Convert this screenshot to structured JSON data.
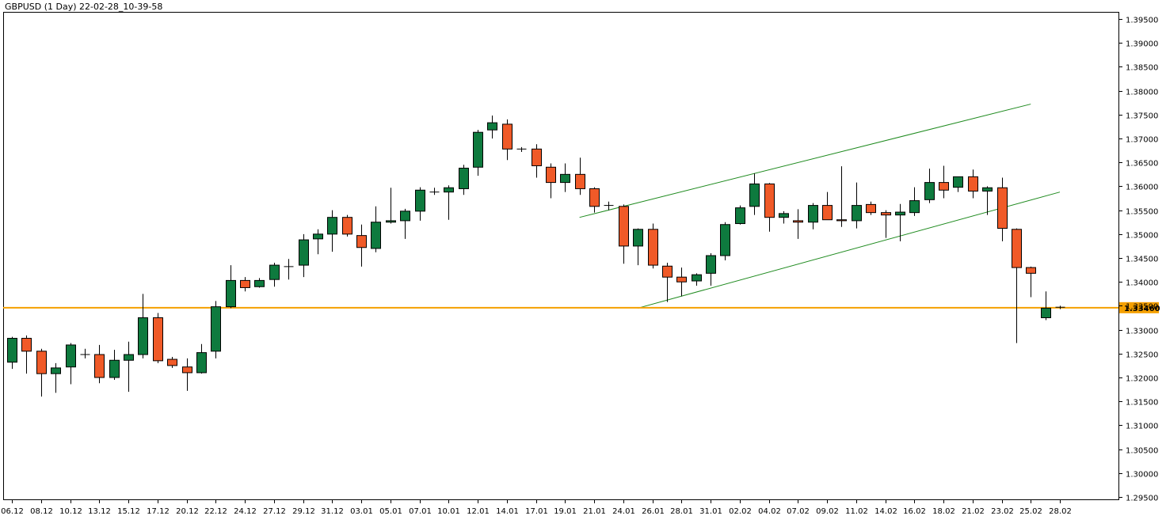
{
  "chart_data": {
    "type": "candlestick",
    "title": "GBPUSD (1 Day) 22-02-28_10-39-58",
    "colors": {
      "background": "#ffffff",
      "bull": "#0e7a3e",
      "bear": "#f05a28",
      "wick": "#000000",
      "trend_line": "#1e8a1e",
      "horizontal_line": "#f5a000",
      "price_label_bg": "#f5a000"
    },
    "y_axis": {
      "position": "right",
      "range": [
        1.2945,
        1.3965
      ],
      "ticks": [
        "1.39500",
        "1.39000",
        "1.38500",
        "1.38000",
        "1.37500",
        "1.37000",
        "1.36500",
        "1.36000",
        "1.35500",
        "1.35000",
        "1.34500",
        "1.34000",
        "1.33500",
        "1.33000",
        "1.32500",
        "1.32000",
        "1.31500",
        "1.31000",
        "1.30500",
        "1.30000",
        "1.29500"
      ]
    },
    "x_axis": {
      "ticks": [
        "06.12",
        "08.12",
        "10.12",
        "13.12",
        "15.12",
        "17.12",
        "20.12",
        "22.12",
        "24.12",
        "27.12",
        "29.12",
        "31.12",
        "03.01",
        "05.01",
        "07.01",
        "10.01",
        "12.01",
        "14.01",
        "17.01",
        "19.01",
        "21.01",
        "24.01",
        "26.01",
        "28.01",
        "31.01",
        "02.02",
        "04.02",
        "07.02",
        "09.02",
        "11.02",
        "14.02",
        "16.02",
        "18.02",
        "21.02",
        "23.02",
        "25.02",
        "28.02"
      ]
    },
    "horizontal_line": {
      "price": 1.3346,
      "label": "1.33460"
    },
    "trend_lines": [
      {
        "from": [
          "20.01",
          1.3535
        ],
        "to": [
          "25.02",
          1.3772
        ]
      },
      {
        "from": [
          "25.01",
          1.3345
        ],
        "to": [
          "28.02",
          1.3588
        ]
      }
    ],
    "candles": [
      {
        "d": "06.12",
        "o": 1.3232,
        "h": 1.3285,
        "l": 1.3218,
        "c": 1.3282
      },
      {
        "d": "07.12",
        "o": 1.3282,
        "h": 1.3288,
        "l": 1.3208,
        "c": 1.3255
      },
      {
        "d": "08.12",
        "o": 1.3255,
        "h": 1.326,
        "l": 1.316,
        "c": 1.3208
      },
      {
        "d": "09.12",
        "o": 1.3208,
        "h": 1.323,
        "l": 1.3168,
        "c": 1.322
      },
      {
        "d": "10.12",
        "o": 1.3222,
        "h": 1.3272,
        "l": 1.3186,
        "c": 1.3268
      },
      {
        "d": "11.12",
        "o": 1.3248,
        "h": 1.326,
        "l": 1.324,
        "c": 1.3248
      },
      {
        "d": "13.12",
        "o": 1.3248,
        "h": 1.3268,
        "l": 1.3188,
        "c": 1.32
      },
      {
        "d": "14.12",
        "o": 1.32,
        "h": 1.3258,
        "l": 1.3195,
        "c": 1.3236
      },
      {
        "d": "15.12",
        "o": 1.3236,
        "h": 1.3275,
        "l": 1.317,
        "c": 1.3248
      },
      {
        "d": "16.12",
        "o": 1.3248,
        "h": 1.3375,
        "l": 1.324,
        "c": 1.3325
      },
      {
        "d": "17.12",
        "o": 1.3325,
        "h": 1.3335,
        "l": 1.323,
        "c": 1.3235
      },
      {
        "d": "19.12",
        "o": 1.3238,
        "h": 1.3243,
        "l": 1.322,
        "c": 1.3225
      },
      {
        "d": "20.12",
        "o": 1.3222,
        "h": 1.324,
        "l": 1.3172,
        "c": 1.321
      },
      {
        "d": "21.12",
        "o": 1.321,
        "h": 1.327,
        "l": 1.3208,
        "c": 1.3252
      },
      {
        "d": "22.12",
        "o": 1.3255,
        "h": 1.336,
        "l": 1.324,
        "c": 1.3348
      },
      {
        "d": "23.12",
        "o": 1.3348,
        "h": 1.3435,
        "l": 1.3345,
        "c": 1.3403
      },
      {
        "d": "24.12",
        "o": 1.3403,
        "h": 1.341,
        "l": 1.338,
        "c": 1.3388
      },
      {
        "d": "26.12",
        "o": 1.339,
        "h": 1.3408,
        "l": 1.3388,
        "c": 1.3403
      },
      {
        "d": "27.12",
        "o": 1.3405,
        "h": 1.344,
        "l": 1.339,
        "c": 1.3435
      },
      {
        "d": "28.12",
        "o": 1.3432,
        "h": 1.3448,
        "l": 1.3405,
        "c": 1.3432
      },
      {
        "d": "29.12",
        "o": 1.3435,
        "h": 1.35,
        "l": 1.341,
        "c": 1.3488
      },
      {
        "d": "30.12",
        "o": 1.349,
        "h": 1.351,
        "l": 1.3458,
        "c": 1.35
      },
      {
        "d": "31.12",
        "o": 1.35,
        "h": 1.355,
        "l": 1.3463,
        "c": 1.3535
      },
      {
        "d": "02.01",
        "o": 1.3535,
        "h": 1.354,
        "l": 1.3495,
        "c": 1.35
      },
      {
        "d": "03.01",
        "o": 1.3497,
        "h": 1.352,
        "l": 1.3432,
        "c": 1.3472
      },
      {
        "d": "04.01",
        "o": 1.347,
        "h": 1.3558,
        "l": 1.3462,
        "c": 1.3525
      },
      {
        "d": "05.01",
        "o": 1.3525,
        "h": 1.3597,
        "l": 1.3522,
        "c": 1.3528
      },
      {
        "d": "06.01",
        "o": 1.3528,
        "h": 1.3553,
        "l": 1.349,
        "c": 1.3548
      },
      {
        "d": "07.01",
        "o": 1.3548,
        "h": 1.3598,
        "l": 1.3528,
        "c": 1.3592
      },
      {
        "d": "09.01",
        "o": 1.3588,
        "h": 1.3597,
        "l": 1.3582,
        "c": 1.3588
      },
      {
        "d": "10.01",
        "o": 1.3588,
        "h": 1.3602,
        "l": 1.353,
        "c": 1.3597
      },
      {
        "d": "11.01",
        "o": 1.3595,
        "h": 1.3645,
        "l": 1.3582,
        "c": 1.3638
      },
      {
        "d": "12.01",
        "o": 1.364,
        "h": 1.3718,
        "l": 1.3622,
        "c": 1.3713
      },
      {
        "d": "13.01",
        "o": 1.3718,
        "h": 1.3748,
        "l": 1.37,
        "c": 1.3733
      },
      {
        "d": "14.01",
        "o": 1.373,
        "h": 1.374,
        "l": 1.3655,
        "c": 1.3678
      },
      {
        "d": "16.01",
        "o": 1.3678,
        "h": 1.3682,
        "l": 1.3672,
        "c": 1.3678
      },
      {
        "d": "17.01",
        "o": 1.3678,
        "h": 1.3688,
        "l": 1.3618,
        "c": 1.3643
      },
      {
        "d": "18.01",
        "o": 1.364,
        "h": 1.3648,
        "l": 1.3575,
        "c": 1.3608
      },
      {
        "d": "19.01",
        "o": 1.3608,
        "h": 1.3648,
        "l": 1.3588,
        "c": 1.3625
      },
      {
        "d": "20.01",
        "o": 1.3625,
        "h": 1.366,
        "l": 1.3582,
        "c": 1.3595
      },
      {
        "d": "21.01",
        "o": 1.3595,
        "h": 1.3598,
        "l": 1.3545,
        "c": 1.3558
      },
      {
        "d": "23.01",
        "o": 1.356,
        "h": 1.3568,
        "l": 1.355,
        "c": 1.356
      },
      {
        "d": "24.01",
        "o": 1.3558,
        "h": 1.3562,
        "l": 1.3438,
        "c": 1.3475
      },
      {
        "d": "25.01",
        "o": 1.3475,
        "h": 1.3512,
        "l": 1.3435,
        "c": 1.351
      },
      {
        "d": "26.01",
        "o": 1.351,
        "h": 1.3522,
        "l": 1.3428,
        "c": 1.3435
      },
      {
        "d": "27.01",
        "o": 1.3433,
        "h": 1.344,
        "l": 1.3358,
        "c": 1.341
      },
      {
        "d": "28.01",
        "o": 1.341,
        "h": 1.343,
        "l": 1.337,
        "c": 1.34
      },
      {
        "d": "30.01",
        "o": 1.3402,
        "h": 1.3418,
        "l": 1.3392,
        "c": 1.3415
      },
      {
        "d": "31.01",
        "o": 1.3418,
        "h": 1.346,
        "l": 1.3392,
        "c": 1.3455
      },
      {
        "d": "01.02",
        "o": 1.3455,
        "h": 1.3525,
        "l": 1.3445,
        "c": 1.352
      },
      {
        "d": "02.02",
        "o": 1.3522,
        "h": 1.356,
        "l": 1.352,
        "c": 1.3555
      },
      {
        "d": "03.02",
        "o": 1.3558,
        "h": 1.3627,
        "l": 1.354,
        "c": 1.3605
      },
      {
        "d": "04.02",
        "o": 1.3605,
        "h": 1.3607,
        "l": 1.3505,
        "c": 1.3535
      },
      {
        "d": "06.02",
        "o": 1.3535,
        "h": 1.3548,
        "l": 1.3522,
        "c": 1.3543
      },
      {
        "d": "07.02",
        "o": 1.3528,
        "h": 1.3552,
        "l": 1.349,
        "c": 1.3525
      },
      {
        "d": "08.02",
        "o": 1.3525,
        "h": 1.3565,
        "l": 1.351,
        "c": 1.356
      },
      {
        "d": "09.02",
        "o": 1.356,
        "h": 1.3588,
        "l": 1.353,
        "c": 1.353
      },
      {
        "d": "10.02",
        "o": 1.353,
        "h": 1.3642,
        "l": 1.3515,
        "c": 1.3528
      },
      {
        "d": "11.02",
        "o": 1.3528,
        "h": 1.3608,
        "l": 1.3512,
        "c": 1.356
      },
      {
        "d": "13.02",
        "o": 1.3562,
        "h": 1.3568,
        "l": 1.354,
        "c": 1.3545
      },
      {
        "d": "14.02",
        "o": 1.3545,
        "h": 1.355,
        "l": 1.3492,
        "c": 1.354
      },
      {
        "d": "15.02",
        "o": 1.354,
        "h": 1.3563,
        "l": 1.3485,
        "c": 1.3546
      },
      {
        "d": "16.02",
        "o": 1.3545,
        "h": 1.3598,
        "l": 1.3538,
        "c": 1.357
      },
      {
        "d": "17.02",
        "o": 1.3572,
        "h": 1.3637,
        "l": 1.3565,
        "c": 1.3608
      },
      {
        "d": "18.02",
        "o": 1.3608,
        "h": 1.3643,
        "l": 1.3575,
        "c": 1.3592
      },
      {
        "d": "20.02",
        "o": 1.3598,
        "h": 1.362,
        "l": 1.3588,
        "c": 1.362
      },
      {
        "d": "21.02",
        "o": 1.362,
        "h": 1.3635,
        "l": 1.3575,
        "c": 1.359
      },
      {
        "d": "22.02",
        "o": 1.359,
        "h": 1.36,
        "l": 1.354,
        "c": 1.3597
      },
      {
        "d": "23.02",
        "o": 1.3597,
        "h": 1.3618,
        "l": 1.3485,
        "c": 1.3512
      },
      {
        "d": "24.02",
        "o": 1.351,
        "h": 1.3512,
        "l": 1.3272,
        "c": 1.343
      },
      {
        "d": "25.02",
        "o": 1.343,
        "h": 1.3432,
        "l": 1.3368,
        "c": 1.3418
      },
      {
        "d": "27.02",
        "o": 1.3325,
        "h": 1.338,
        "l": 1.332,
        "c": 1.3345
      },
      {
        "d": "28.02",
        "o": 1.3346,
        "h": 1.335,
        "l": 1.3343,
        "c": 1.3347
      }
    ]
  }
}
